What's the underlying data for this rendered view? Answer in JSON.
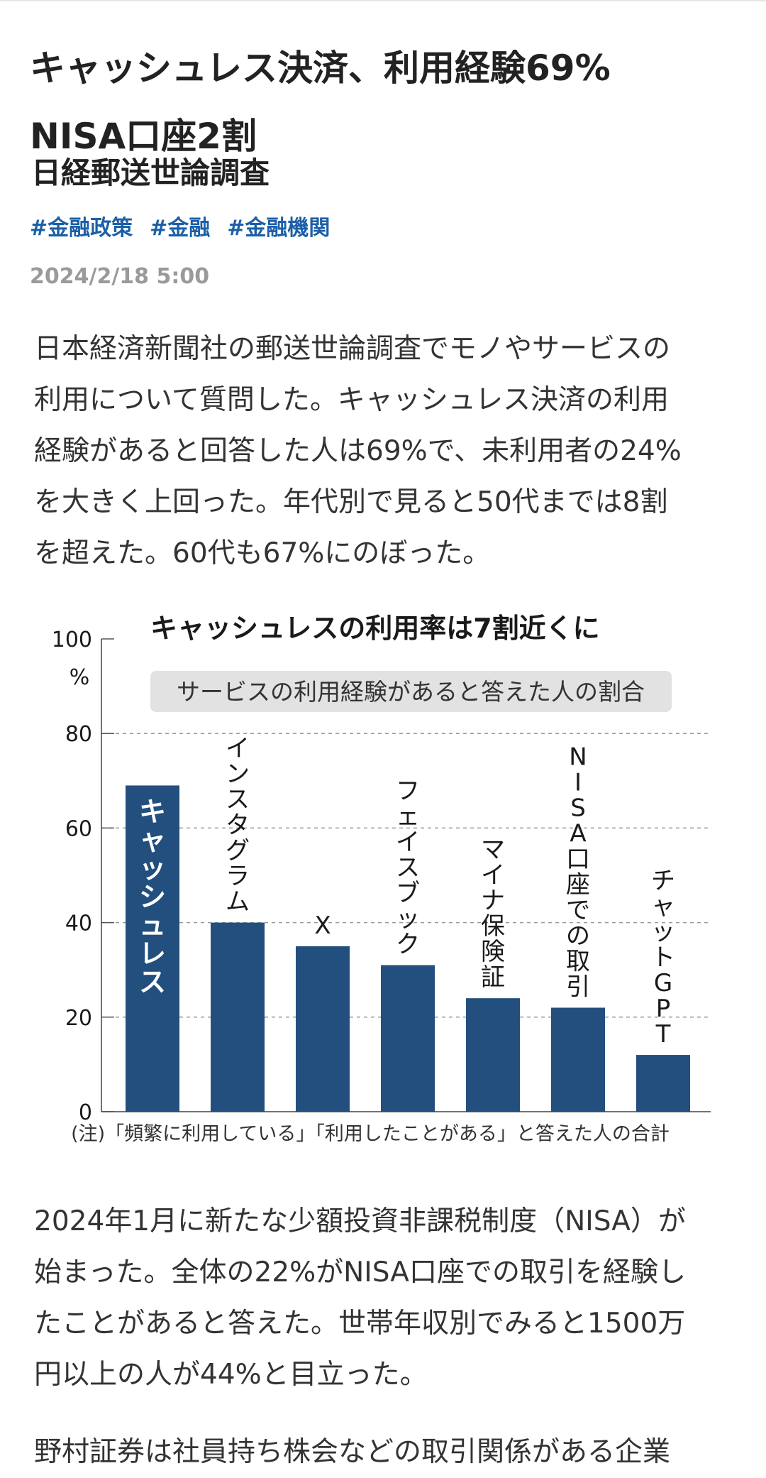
{
  "article": {
    "headline_line1": "キャッシュレス決済、利用経験69%",
    "headline_line2": "NISA口座2割",
    "subheadline": "日経郵送世論調査",
    "tags": [
      "#金融政策",
      "#金融",
      "#金融機関"
    ],
    "date": "2024/2/18 5:00",
    "paragraph1": [
      "日本経済新聞社の郵送世論調査でモノやサービスの",
      "利用について質問した。キャッシュレス決済の利用",
      "経験があると回答した人は69%で、未利用者の24%",
      "を大きく上回った。年代別で見ると50代までは8割",
      "を超えた。60代も67%にのぼった。"
    ],
    "paragraph2": [
      "2024年1月に新たな少額投資非課税制度（NISA）が",
      "始まった。全体の22%がNISA口座での取引を経験し",
      "たことがあると答えた。世帯年収別でみると1500万",
      "円以上の人が44%と目立った。"
    ],
    "paragraph3": [
      "野村証券は社員持ち株会などの取引関係がある企業"
    ]
  },
  "chart_data": {
    "type": "bar",
    "title": "キャッシュレスの利用率は7割近くに",
    "subtitle": "サービスの利用経験があると答えた人の割合",
    "categories": [
      "キャッシュレス",
      "インスタグラム",
      "X",
      "フェイスブック",
      "マイナ保険証",
      "NISA口座での取引",
      "チャットGPT"
    ],
    "values": [
      69,
      40,
      35,
      31,
      24,
      22,
      12
    ],
    "ylim": [
      0,
      100
    ],
    "yticks": [
      0,
      20,
      40,
      60,
      80,
      100
    ],
    "yunit": "%",
    "grid": true,
    "bar_color": "#234f7e",
    "note": "(注)「頻繁に利用している」「利用したことがある」と答えた人の合計"
  }
}
